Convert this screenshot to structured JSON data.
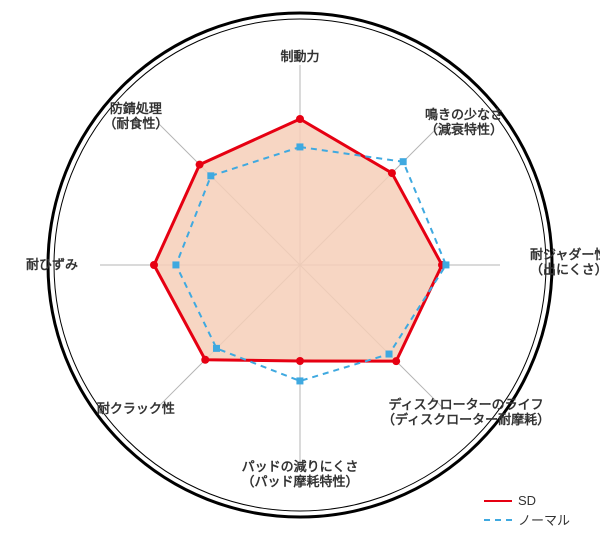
{
  "chart": {
    "type": "radar",
    "background_color": "#ffffff",
    "outer_ring_stroke": "#000000",
    "outer_ring_width_outer": 3,
    "outer_ring_width_inner": 1,
    "axis_stroke": "#b5b5b5",
    "axis_width": 1,
    "max_value": 10,
    "rings": 5,
    "axes": [
      {
        "key": "braking",
        "label_lines": [
          "制動力"
        ],
        "angle_deg": -90
      },
      {
        "key": "squeal",
        "label_lines": [
          "鳴きの少なさ",
          "（減衰特性）"
        ],
        "angle_deg": -45
      },
      {
        "key": "judder",
        "label_lines": [
          "耐ジャダー性",
          "（出にくさ）"
        ],
        "angle_deg": 0
      },
      {
        "key": "rotor_life",
        "label_lines": [
          "ディスクローターのライフ",
          "（ディスクローター耐摩耗）"
        ],
        "angle_deg": 45
      },
      {
        "key": "pad_life",
        "label_lines": [
          "パッドの減りにくさ",
          "（パッド摩耗特性）"
        ],
        "angle_deg": 90
      },
      {
        "key": "crack",
        "label_lines": [
          "耐クラック性"
        ],
        "angle_deg": 135
      },
      {
        "key": "distortion",
        "label_lines": [
          "耐ひずみ"
        ],
        "angle_deg": 180
      },
      {
        "key": "rust",
        "label_lines": [
          "防錆処理",
          "（耐食性）"
        ],
        "angle_deg": -135
      }
    ],
    "series": [
      {
        "name": "SD",
        "label": "SD",
        "color": "#e60012",
        "line_width": 3,
        "dash": null,
        "marker": "circle",
        "marker_size": 4,
        "fill": "#f6cfb8",
        "fill_opacity": 0.85,
        "values": {
          "braking": 7.3,
          "squeal": 6.5,
          "judder": 7.1,
          "rotor_life": 6.8,
          "pad_life": 4.8,
          "crack": 6.7,
          "distortion": 7.3,
          "rust": 7.1
        }
      },
      {
        "name": "normal",
        "label": "ノーマル",
        "color": "#3fa9e0",
        "line_width": 2,
        "dash": "6,5",
        "marker": "square",
        "marker_size": 5,
        "fill": null,
        "fill_opacity": 0,
        "values": {
          "braking": 5.9,
          "squeal": 7.3,
          "judder": 7.3,
          "rotor_life": 6.3,
          "pad_life": 5.8,
          "crack": 5.9,
          "distortion": 6.2,
          "rust": 6.3
        }
      }
    ],
    "label_font_size": 13,
    "label_color": "#333333",
    "label_font_weight": "bold"
  },
  "legend": {
    "items": [
      {
        "series": "SD",
        "label": "SD",
        "color": "#e60012",
        "dash": "solid"
      },
      {
        "series": "normal",
        "label": "ノーマル",
        "color": "#3fa9e0",
        "dash": "dashed"
      }
    ]
  }
}
